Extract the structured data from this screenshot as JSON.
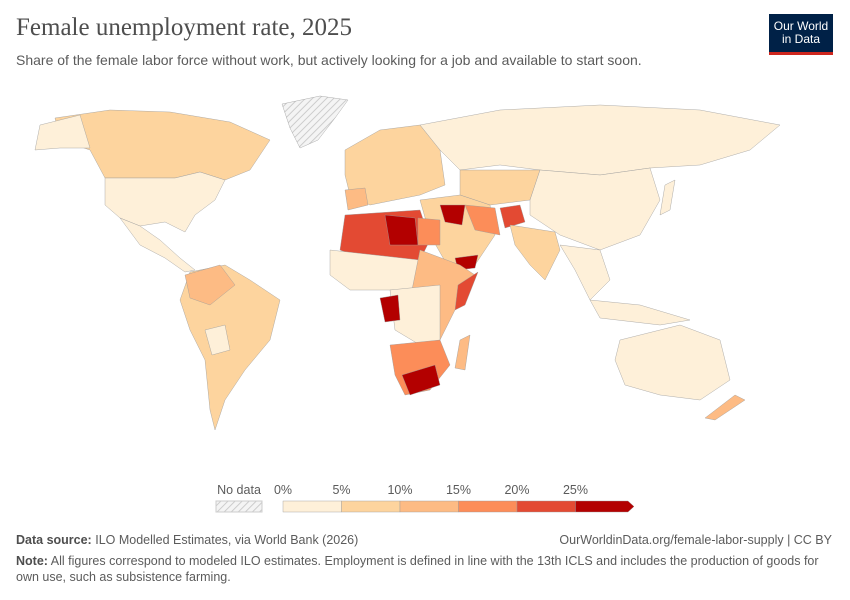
{
  "header": {
    "title": "Female unemployment rate, 2025",
    "subtitle": "Share of the female labor force without work, but actively looking for a job and available to start soon.",
    "logo_line1": "Our World",
    "logo_line2": "in Data"
  },
  "legend": {
    "no_data_label": "No data",
    "ticks": [
      "0%",
      "5%",
      "10%",
      "15%",
      "20%",
      "25%"
    ],
    "colors": [
      "#fef0d9",
      "#fdd49e",
      "#fdbb84",
      "#fc8d59",
      "#e34a33",
      "#b30000"
    ],
    "no_data_color": "#e6e6e6"
  },
  "footer": {
    "source_label": "Data source:",
    "source": "ILO Modelled Estimates, via World Bank (2026)",
    "url": "OurWorldinData.org/female-labor-supply | CC BY",
    "note_label": "Note:",
    "note": "All figures correspond to modeled ILO estimates. Employment is defined in line with the 13th ICLS and includes the production of goods for own use, such as subsistence farming."
  }
}
